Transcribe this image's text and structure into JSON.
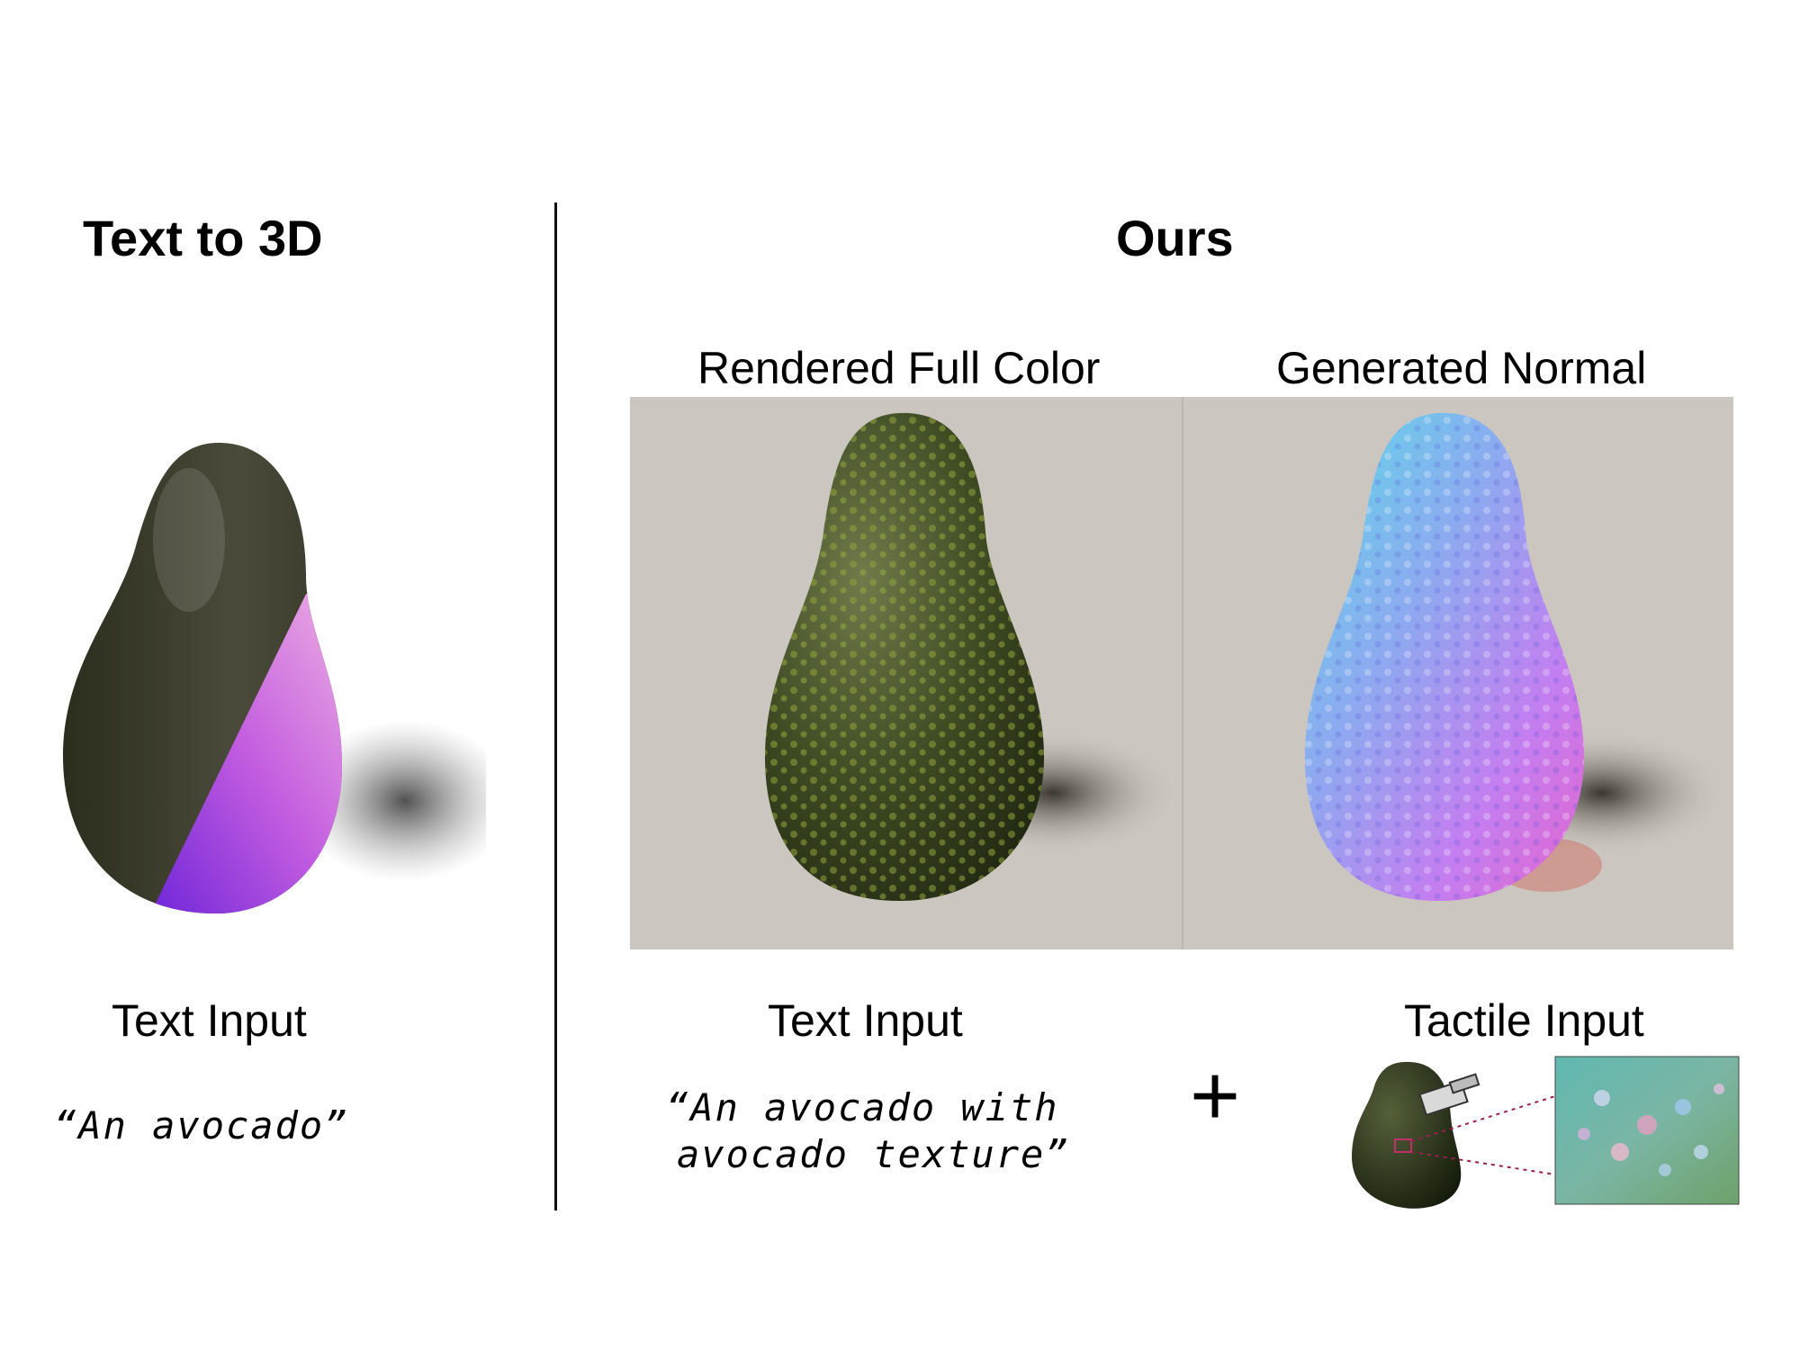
{
  "left": {
    "title": "Text to 3D",
    "input_label": "Text Input",
    "prompt": "“An avocado”"
  },
  "right": {
    "title": "Ours",
    "col1_label": "Rendered Full Color",
    "col2_label": "Generated Normal",
    "text_input_label": "Text Input",
    "prompt_line1": "“An avocado with",
    "prompt_line2": "avocado texture”",
    "plus": "+",
    "tactile_input_label": "Tactile Input"
  }
}
